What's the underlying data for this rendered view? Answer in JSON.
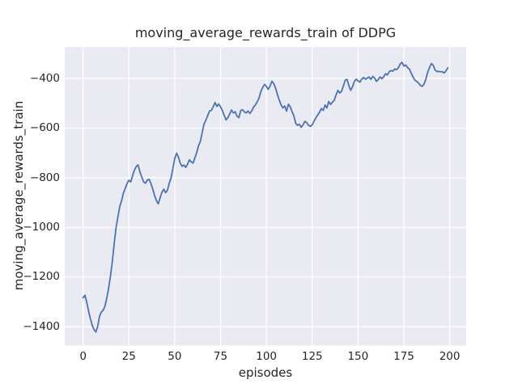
{
  "chart_data": {
    "type": "line",
    "title": "moving_average_rewards_train of DDPG",
    "xlabel": "episodes",
    "ylabel": "moving_average_rewards_train",
    "legend": null,
    "grid": true,
    "x_start": 0,
    "x_step": 1,
    "xlim": [
      -10,
      209
    ],
    "ylim": [
      -1476,
      -273
    ],
    "xticks": [
      0,
      25,
      50,
      75,
      100,
      125,
      150,
      175,
      200
    ],
    "yticks": [
      -400,
      -600,
      -800,
      -1000,
      -1200,
      -1400
    ],
    "line_color": "#4c72b0",
    "plot_bg": "#eaeaf2",
    "grid_color": "#ffffff",
    "text_color": "#262626",
    "figure_bg": "#ffffff",
    "values": [
      -1283,
      -1273,
      -1302,
      -1337,
      -1368,
      -1394,
      -1412,
      -1421,
      -1398,
      -1357,
      -1340,
      -1333,
      -1315,
      -1282,
      -1241,
      -1193,
      -1135,
      -1063,
      -1000,
      -957,
      -916,
      -893,
      -862,
      -843,
      -823,
      -810,
      -817,
      -792,
      -769,
      -755,
      -748,
      -776,
      -797,
      -816,
      -822,
      -810,
      -806,
      -823,
      -845,
      -871,
      -892,
      -905,
      -881,
      -859,
      -846,
      -860,
      -851,
      -822,
      -800,
      -762,
      -722,
      -701,
      -717,
      -741,
      -754,
      -749,
      -758,
      -745,
      -728,
      -736,
      -741,
      -719,
      -699,
      -670,
      -653,
      -617,
      -583,
      -568,
      -549,
      -531,
      -529,
      -514,
      -497,
      -513,
      -503,
      -515,
      -530,
      -549,
      -567,
      -558,
      -543,
      -527,
      -539,
      -534,
      -552,
      -558,
      -529,
      -526,
      -535,
      -539,
      -531,
      -541,
      -531,
      -515,
      -507,
      -494,
      -479,
      -452,
      -436,
      -424,
      -432,
      -444,
      -431,
      -411,
      -421,
      -439,
      -464,
      -487,
      -506,
      -519,
      -511,
      -532,
      -504,
      -514,
      -534,
      -551,
      -581,
      -589,
      -585,
      -597,
      -587,
      -573,
      -578,
      -589,
      -593,
      -587,
      -572,
      -559,
      -547,
      -536,
      -521,
      -529,
      -507,
      -519,
      -493,
      -505,
      -496,
      -488,
      -467,
      -448,
      -459,
      -452,
      -430,
      -407,
      -404,
      -429,
      -448,
      -433,
      -412,
      -403,
      -410,
      -415,
      -403,
      -396,
      -403,
      -399,
      -394,
      -404,
      -392,
      -398,
      -412,
      -405,
      -394,
      -401,
      -393,
      -381,
      -386,
      -373,
      -368,
      -371,
      -362,
      -365,
      -357,
      -342,
      -335,
      -350,
      -346,
      -356,
      -362,
      -379,
      -394,
      -407,
      -412,
      -419,
      -428,
      -432,
      -423,
      -403,
      -375,
      -356,
      -340,
      -347,
      -366,
      -372,
      -372,
      -373,
      -373,
      -378,
      -369,
      -357
    ]
  }
}
